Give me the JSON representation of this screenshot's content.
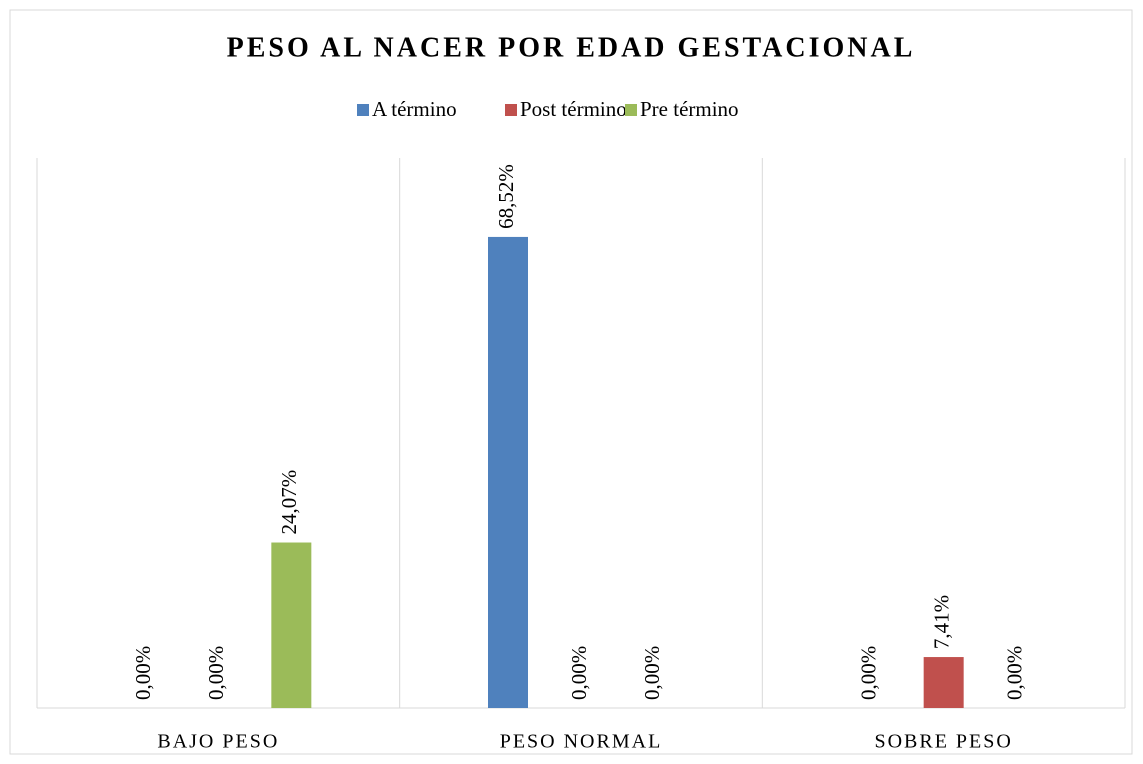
{
  "chart_data": {
    "type": "bar",
    "title": "PESO AL NACER POR EDAD GESTACIONAL",
    "categories": [
      "BAJO PESO",
      "PESO NORMAL",
      "SOBRE PESO"
    ],
    "series": [
      {
        "name": "A término",
        "color": "#4f81bd",
        "values": [
          0,
          68.52,
          0
        ],
        "value_labels": [
          "0,00%",
          "68,52%",
          "0,00%"
        ]
      },
      {
        "name": "Post término",
        "color": "#c0504d",
        "values": [
          0,
          0,
          7.41
        ],
        "value_labels": [
          "0,00%",
          "0,00%",
          "7,41%"
        ]
      },
      {
        "name": "Pre término",
        "color": "#9bbb59",
        "values": [
          24.07,
          0,
          0
        ],
        "value_labels": [
          "24,07%",
          "0,00%",
          "0,00%"
        ]
      }
    ],
    "ylim": [
      0,
      80
    ]
  }
}
